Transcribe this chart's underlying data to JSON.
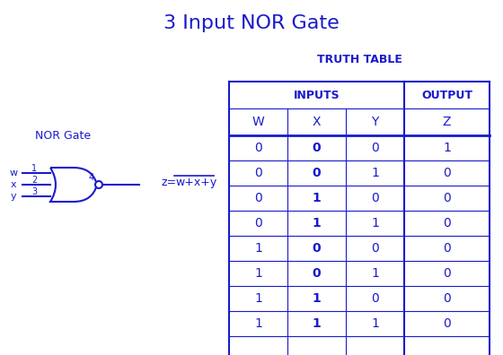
{
  "title": "3 Input NOR Gate",
  "title_color": "#1a1aaa",
  "title_fontsize": 16,
  "truth_table_title": "TRUTH TABLE",
  "col_header1": "INPUTS",
  "col_header2": "OUTPUT",
  "col_labels": [
    "W",
    "X",
    "Y",
    "Z"
  ],
  "truth_data": [
    [
      0,
      0,
      0,
      1
    ],
    [
      0,
      0,
      1,
      0
    ],
    [
      0,
      1,
      0,
      0
    ],
    [
      0,
      1,
      1,
      0
    ],
    [
      1,
      0,
      0,
      0
    ],
    [
      1,
      0,
      1,
      0
    ],
    [
      1,
      1,
      0,
      0
    ],
    [
      1,
      1,
      1,
      0
    ]
  ],
  "bold_col": 1,
  "gate_label": "NOR Gate",
  "equation": "z=w+x+y",
  "main_color": "#1a1acc",
  "table_color": "#1a1acc",
  "bg_color": "#ffffff"
}
